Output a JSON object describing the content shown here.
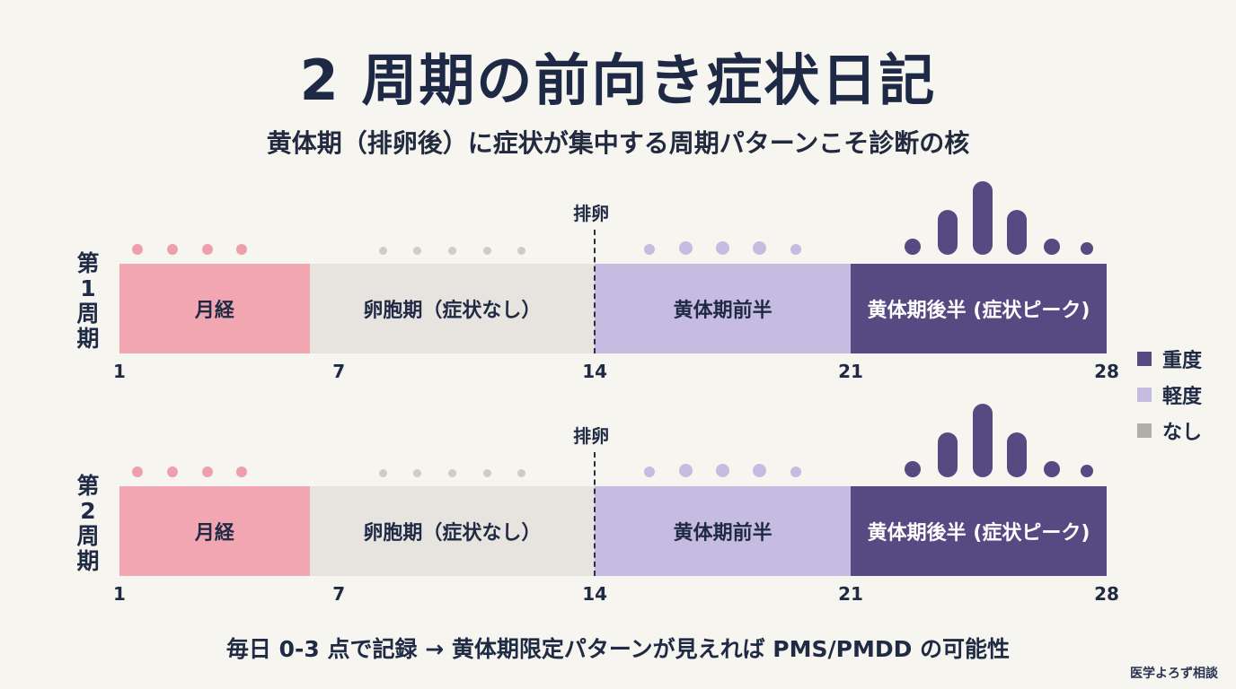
{
  "title": "2 周期の前向き症状日記",
  "subtitle": "黄体期（排卵後）に症状が集中する周期パターンこそ診断の核",
  "colors": {
    "menstruation": "#f2a6b1",
    "follicular": "#e7e4df",
    "luteal_early": "#c6bbe0",
    "luteal_late": "#574a82",
    "dot_menstruation": "#ef9fab",
    "dot_none": "#cfccc6",
    "dot_mild": "#c6bbe0",
    "dot_severe": "#574a82"
  },
  "ovulation_label": "排卵",
  "cycles": [
    {
      "label": [
        "第",
        "1",
        "周期"
      ],
      "phases": [
        {
          "name": "月経",
          "start_day": 1,
          "end_day": 6.2,
          "color_key": "menstruation"
        },
        {
          "name": "卵胞期（症状なし）",
          "start_day": 6.2,
          "end_day": 14,
          "color_key": "follicular"
        },
        {
          "name": "黄体期前半",
          "start_day": 14,
          "end_day": 21,
          "color_key": "luteal_early"
        },
        {
          "name": "黄体期後半 (症状ピーク)",
          "start_day": 21,
          "end_day": 28,
          "color_key": "luteal_late"
        }
      ],
      "ticks": [
        "1",
        "7",
        "14",
        "21",
        "28"
      ],
      "symptom_dots": [
        {
          "day": 1.5,
          "score": 0,
          "kind": "menstruation"
        },
        {
          "day": 2.45,
          "score": 0,
          "kind": "menstruation"
        },
        {
          "day": 3.4,
          "score": 0,
          "kind": "menstruation"
        },
        {
          "day": 4.35,
          "score": 0,
          "kind": "menstruation"
        },
        {
          "day": 8.2,
          "score": 0,
          "kind": "none"
        },
        {
          "day": 9.15,
          "score": 0,
          "kind": "none"
        },
        {
          "day": 10.1,
          "score": 0,
          "kind": "none"
        },
        {
          "day": 11.05,
          "score": 0,
          "kind": "none"
        },
        {
          "day": 12.0,
          "score": 0,
          "kind": "none"
        },
        {
          "day": 15.5,
          "score": 1,
          "kind": "mild"
        },
        {
          "day": 16.5,
          "score": 1,
          "kind": "mild"
        },
        {
          "day": 17.5,
          "score": 1,
          "kind": "mild"
        },
        {
          "day": 18.5,
          "score": 1,
          "kind": "mild"
        },
        {
          "day": 19.5,
          "score": 1,
          "kind": "mild"
        },
        {
          "day": 22.7,
          "score": 1,
          "kind": "severe"
        },
        {
          "day": 23.65,
          "score": 2,
          "kind": "severe"
        },
        {
          "day": 24.6,
          "score": 3,
          "kind": "severe"
        },
        {
          "day": 25.55,
          "score": 2,
          "kind": "severe"
        },
        {
          "day": 26.5,
          "score": 1,
          "kind": "severe"
        },
        {
          "day": 27.45,
          "score": 0.7,
          "kind": "severe"
        }
      ]
    },
    {
      "label": [
        "第",
        "2",
        "周期"
      ],
      "phases": [
        {
          "name": "月経",
          "start_day": 1,
          "end_day": 6.2,
          "color_key": "menstruation"
        },
        {
          "name": "卵胞期（症状なし）",
          "start_day": 6.2,
          "end_day": 14,
          "color_key": "follicular"
        },
        {
          "name": "黄体期前半",
          "start_day": 14,
          "end_day": 21,
          "color_key": "luteal_early"
        },
        {
          "name": "黄体期後半 (症状ピーク)",
          "start_day": 21,
          "end_day": 28,
          "color_key": "luteal_late"
        }
      ],
      "ticks": [
        "1",
        "7",
        "14",
        "21",
        "28"
      ],
      "symptom_dots": [
        {
          "day": 1.5,
          "score": 0,
          "kind": "menstruation"
        },
        {
          "day": 2.45,
          "score": 0,
          "kind": "menstruation"
        },
        {
          "day": 3.4,
          "score": 0,
          "kind": "menstruation"
        },
        {
          "day": 4.35,
          "score": 0,
          "kind": "menstruation"
        },
        {
          "day": 8.2,
          "score": 0,
          "kind": "none"
        },
        {
          "day": 9.15,
          "score": 0,
          "kind": "none"
        },
        {
          "day": 10.1,
          "score": 0,
          "kind": "none"
        },
        {
          "day": 11.05,
          "score": 0,
          "kind": "none"
        },
        {
          "day": 12.0,
          "score": 0,
          "kind": "none"
        },
        {
          "day": 15.5,
          "score": 1,
          "kind": "mild"
        },
        {
          "day": 16.5,
          "score": 1,
          "kind": "mild"
        },
        {
          "day": 17.5,
          "score": 1,
          "kind": "mild"
        },
        {
          "day": 18.5,
          "score": 1,
          "kind": "mild"
        },
        {
          "day": 19.5,
          "score": 1,
          "kind": "mild"
        },
        {
          "day": 22.7,
          "score": 1,
          "kind": "severe"
        },
        {
          "day": 23.65,
          "score": 2,
          "kind": "severe"
        },
        {
          "day": 24.6,
          "score": 3,
          "kind": "severe"
        },
        {
          "day": 25.55,
          "score": 2,
          "kind": "severe"
        },
        {
          "day": 26.5,
          "score": 1,
          "kind": "severe"
        },
        {
          "day": 27.45,
          "score": 0.7,
          "kind": "severe"
        }
      ]
    }
  ],
  "legend": [
    {
      "label": "重度",
      "color": "#574a82"
    },
    {
      "label": "軽度",
      "color": "#c6bbe0"
    },
    {
      "label": "なし",
      "color": "#b0aea9"
    }
  ],
  "footer": "毎日 0-3 点で記録 → 黄体期限定パターンが見えれば PMS/PMDD の可能性",
  "brand": "医学よろず相談"
}
